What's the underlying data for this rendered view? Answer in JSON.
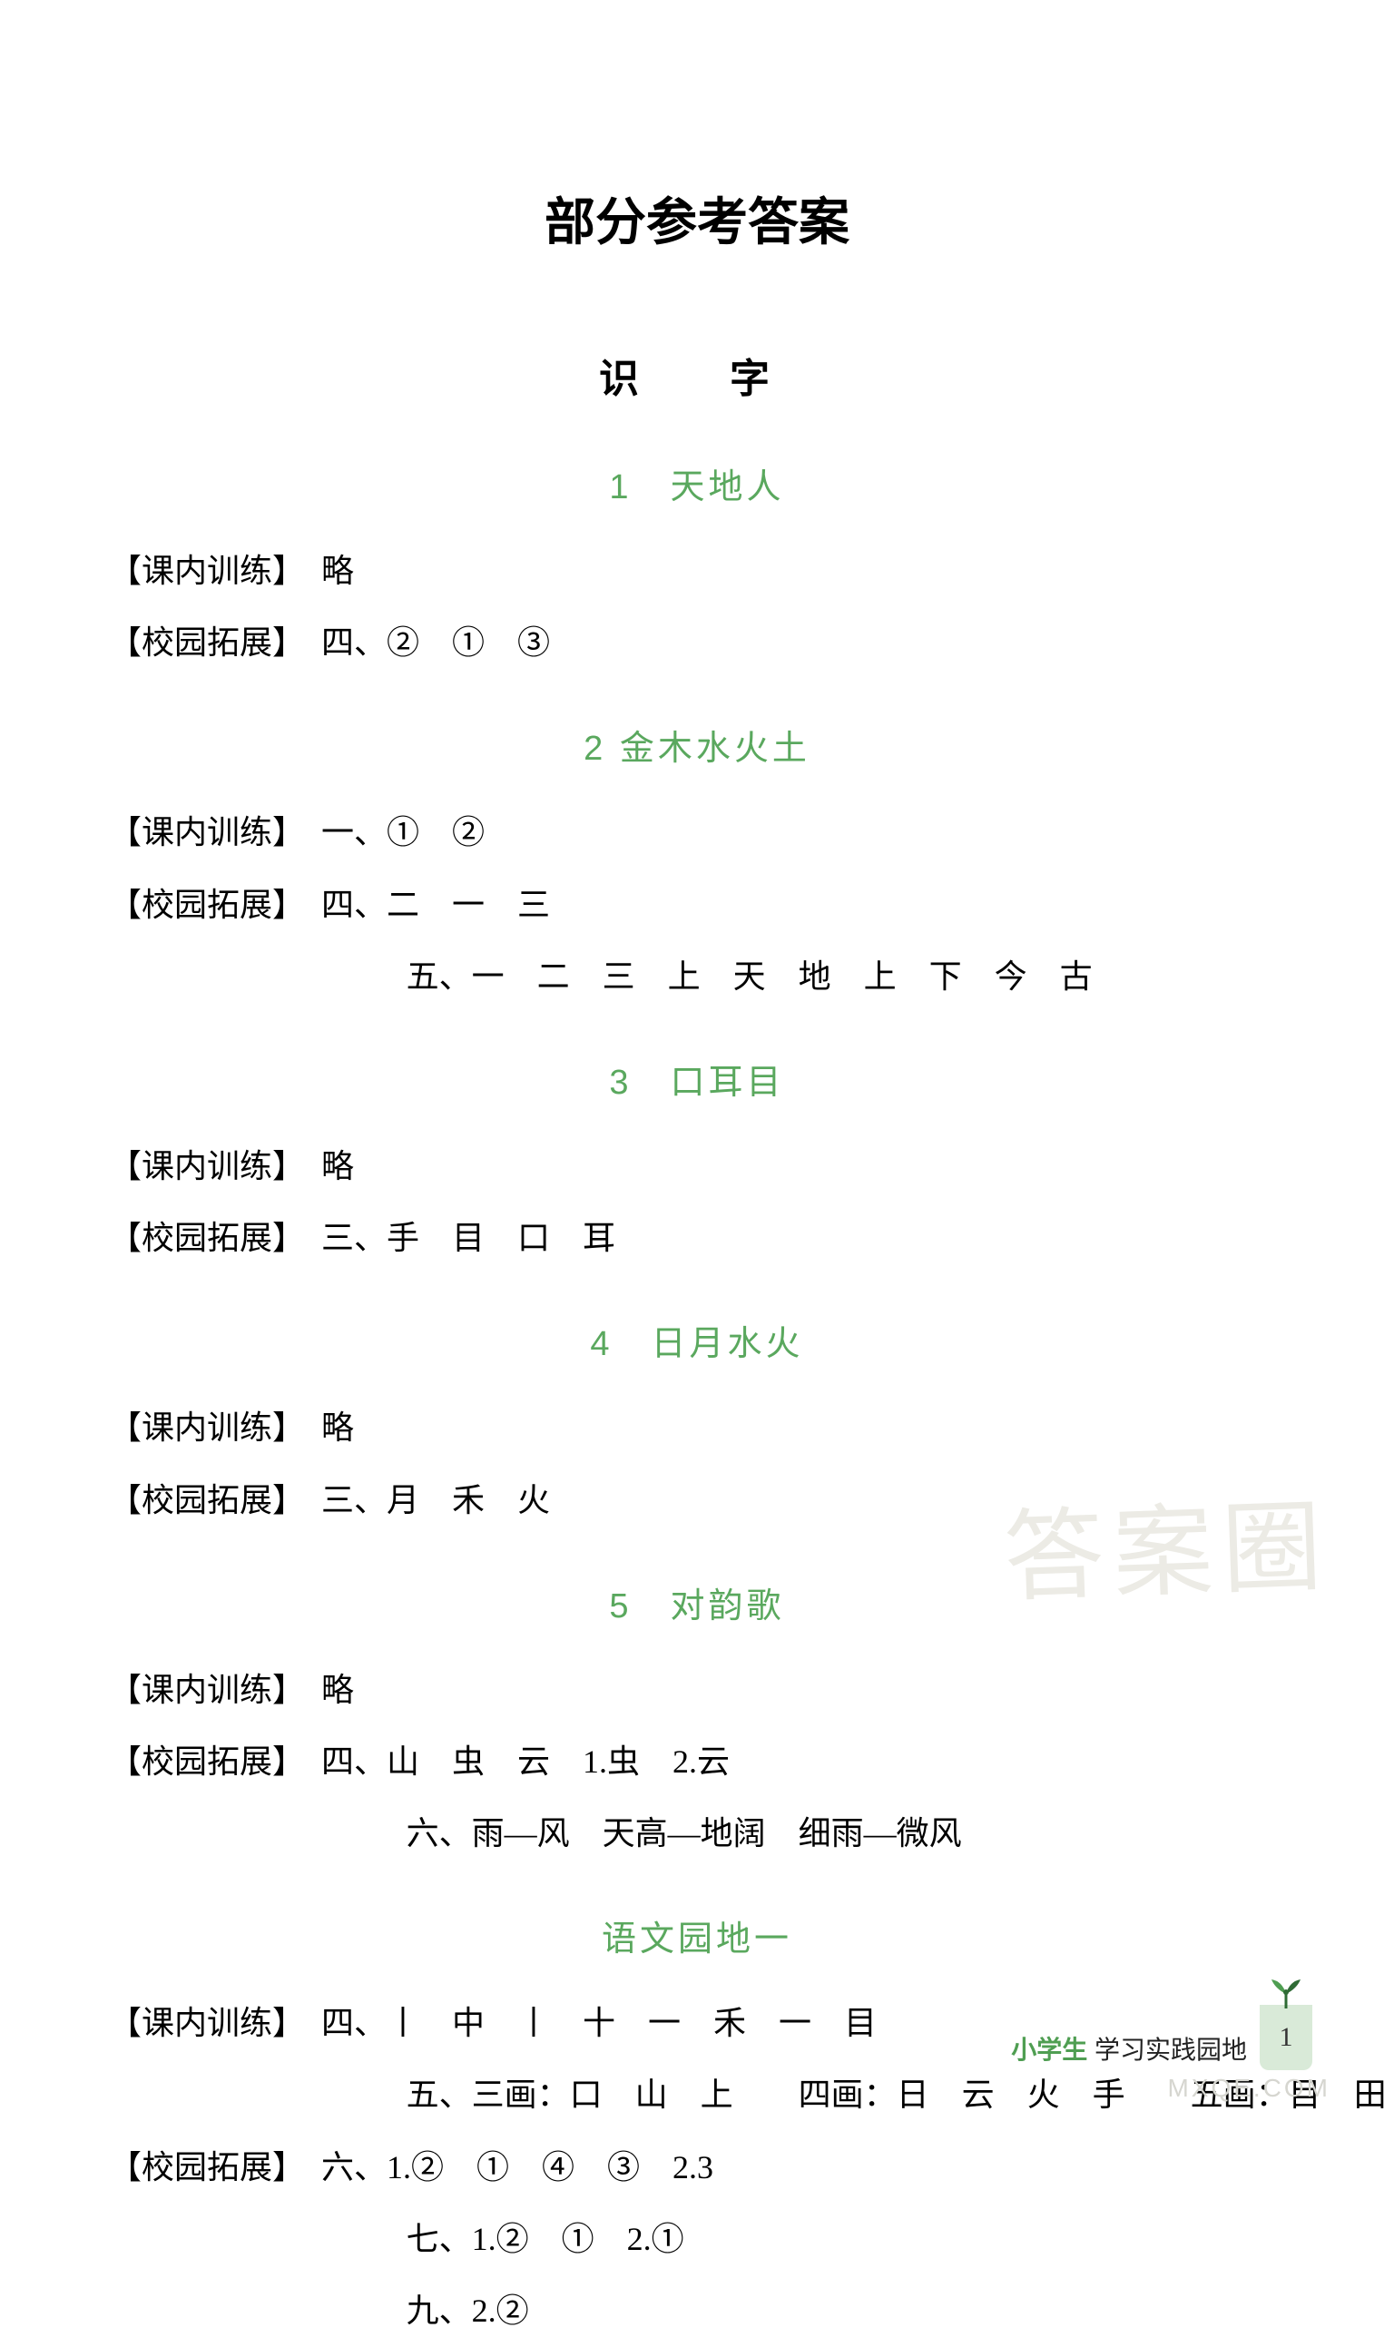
{
  "colors": {
    "section_title": "#5aa85e",
    "footer_green": "#4f9e52",
    "pagebox_bg": "#d9ead8",
    "sprout_leaf": "#4f9e52",
    "sprout_dark": "#2f6b35",
    "watermark": "#ecebe5",
    "watermark2": "#d6d6d0",
    "text": "#000000",
    "background": "#ffffff"
  },
  "typography": {
    "main_title_size_pt": 42,
    "sub_title_size_pt": 33,
    "section_title_size_pt": 28,
    "body_size_pt": 27,
    "footer_size_pt": 21,
    "line_height": 2.2,
    "title_font": "SimHei",
    "body_font": "SimSun"
  },
  "watermark": {
    "text": "答案圈",
    "subtext": "MXQE.COM"
  },
  "main_title": "部分参考答案",
  "sub_title": "识　字",
  "sections": [
    {
      "title": "1　天地人",
      "rows": [
        {
          "label": "【课内训练】",
          "content": "　略"
        },
        {
          "label": "【校园拓展】",
          "content": "　四、②　①　③"
        }
      ]
    },
    {
      "title": "2 金木水火土",
      "rows": [
        {
          "label": "【课内训练】",
          "content": "　一、①　②"
        },
        {
          "label": "【校园拓展】",
          "content": "　四、二　一　三"
        },
        {
          "label": "",
          "content": "五、一　二　三　上　天　地　上　下　今　古",
          "indent": true
        }
      ]
    },
    {
      "title": "3　口耳目",
      "rows": [
        {
          "label": "【课内训练】",
          "content": "　略"
        },
        {
          "label": "【校园拓展】",
          "content": "　三、手　目　口　耳"
        }
      ]
    },
    {
      "title": "4　日月水火",
      "rows": [
        {
          "label": "【课内训练】",
          "content": "　略"
        },
        {
          "label": "【校园拓展】",
          "content": "　三、月　禾　火"
        }
      ]
    },
    {
      "title": "5　对韵歌",
      "rows": [
        {
          "label": "【课内训练】",
          "content": "　略"
        },
        {
          "label": "【校园拓展】",
          "content": "　四、山　虫　云　1.虫　2.云"
        },
        {
          "label": "",
          "content": "六、雨—风　天高—地阔　细雨—微风",
          "indent": true
        }
      ]
    },
    {
      "title": "语文园地一",
      "rows": [
        {
          "label": "【课内训练】",
          "content": "　四、丨　中　丨　十　一　禾　一　目"
        },
        {
          "label": "",
          "content": "五、三画：口　山　上　　四画：日　云　火　手　　五画：目　田　禾",
          "indent": true
        },
        {
          "label": "【校园拓展】",
          "content": "　六、1.②　①　④　③　2.3"
        },
        {
          "label": "",
          "content": "七、1.②　①　2.①",
          "indent": true
        },
        {
          "label": "",
          "content": "九、2.②",
          "indent": true
        }
      ]
    }
  ],
  "footer": {
    "green": "小学生",
    "black": " 学习实践园地",
    "page": "1"
  }
}
